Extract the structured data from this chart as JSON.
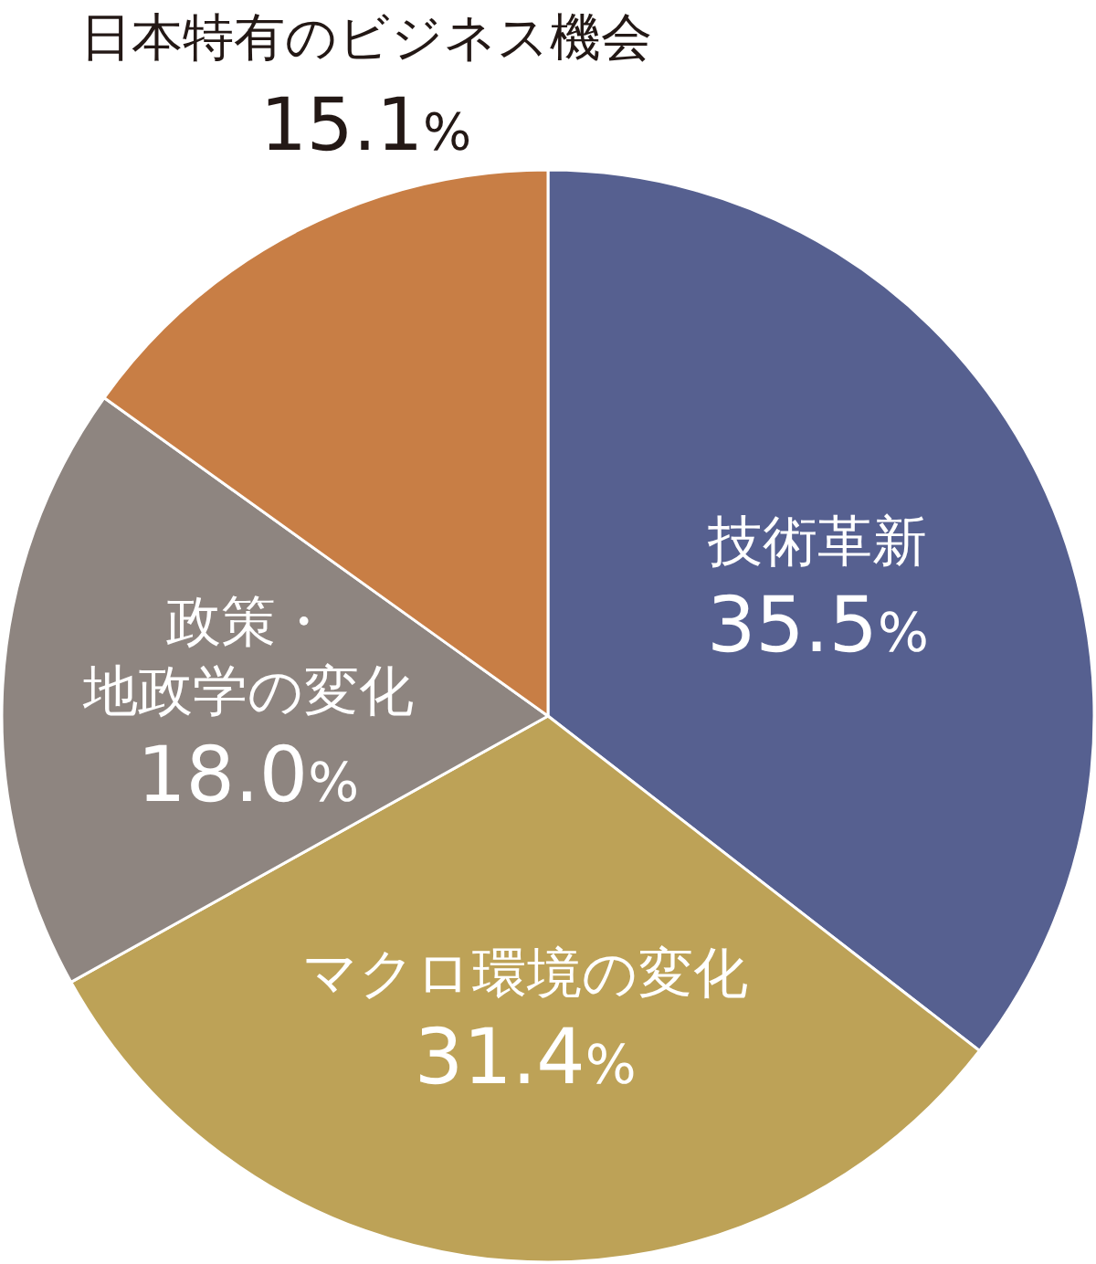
{
  "chart_data": {
    "type": "pie",
    "categories": [
      "技術革新",
      "マクロ環境の変化",
      "政策・地政学の変化",
      "日本特有のビジネス機会"
    ],
    "values": [
      35.5,
      31.4,
      18.0,
      15.1
    ],
    "value_labels": [
      "35.5%",
      "31.4%",
      "18.0%",
      "15.1%"
    ],
    "colors": [
      "#566090",
      "#bda257",
      "#8e8580",
      "#c87e45"
    ],
    "legend": false
  }
}
